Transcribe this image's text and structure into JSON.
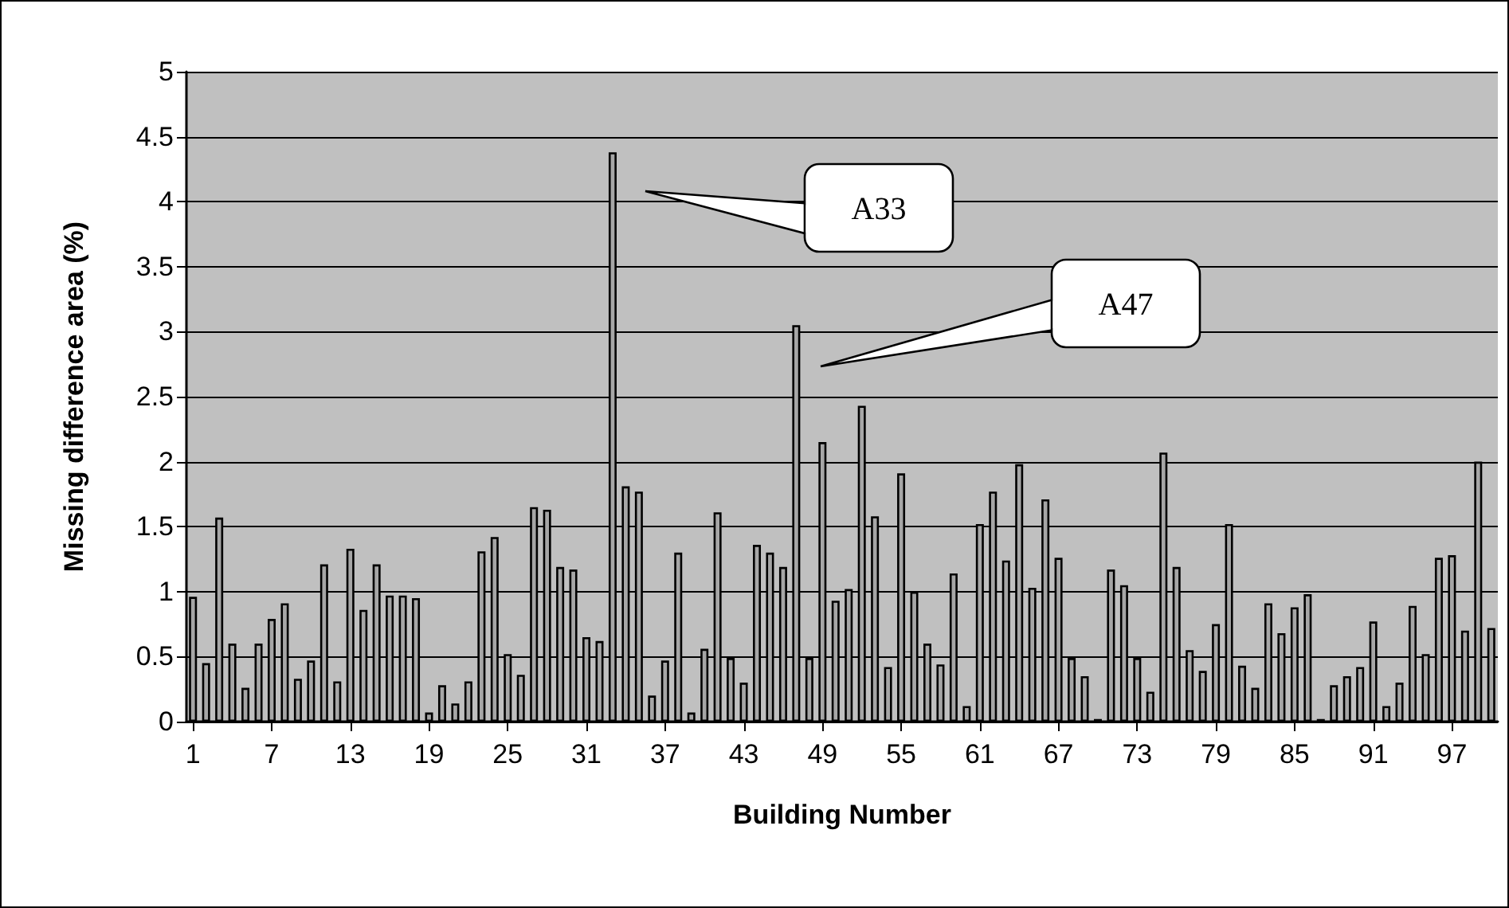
{
  "chart_data": {
    "type": "bar",
    "xlabel": "Building Number",
    "ylabel": "Missing difference area (%)",
    "x": [
      1,
      2,
      3,
      4,
      5,
      6,
      7,
      8,
      9,
      10,
      11,
      12,
      13,
      14,
      15,
      16,
      17,
      18,
      19,
      20,
      21,
      22,
      23,
      24,
      25,
      26,
      27,
      28,
      29,
      30,
      31,
      32,
      33,
      34,
      35,
      36,
      37,
      38,
      39,
      40,
      41,
      42,
      43,
      44,
      45,
      46,
      47,
      48,
      49,
      50,
      51,
      52,
      53,
      54,
      55,
      56,
      57,
      58,
      59,
      60,
      61,
      62,
      63,
      64,
      65,
      66,
      67,
      68,
      69,
      70,
      71,
      72,
      73,
      74,
      75,
      76,
      77,
      78,
      79,
      80,
      81,
      82,
      83,
      84,
      85,
      86,
      87,
      88,
      89,
      90,
      91,
      92,
      93,
      94,
      95,
      96,
      97,
      98,
      99,
      100
    ],
    "values": [
      0.96,
      0.45,
      1.57,
      0.6,
      0.26,
      0.6,
      0.79,
      0.91,
      0.33,
      0.47,
      1.21,
      0.31,
      1.33,
      0.86,
      1.21,
      0.97,
      0.97,
      0.95,
      0.07,
      0.28,
      0.14,
      0.31,
      1.31,
      1.42,
      0.52,
      0.36,
      1.65,
      1.63,
      1.19,
      1.17,
      0.65,
      0.62,
      4.38,
      1.81,
      1.77,
      0.2,
      0.47,
      1.3,
      0.07,
      0.56,
      1.61,
      0.49,
      0.3,
      1.36,
      1.3,
      1.19,
      3.05,
      0.49,
      2.15,
      0.93,
      1.02,
      2.43,
      1.58,
      0.42,
      1.91,
      1.0,
      0.6,
      0.44,
      1.14,
      0.12,
      1.52,
      1.77,
      1.24,
      1.98,
      1.03,
      1.71,
      1.26,
      0.49,
      0.35,
      0.02,
      1.17,
      1.05,
      0.49,
      0.23,
      2.07,
      1.19,
      0.55,
      0.39,
      0.75,
      1.52,
      0.43,
      0.26,
      0.91,
      0.68,
      0.88,
      0.98,
      0.02,
      0.28,
      0.35,
      0.42,
      0.77,
      0.12,
      0.3,
      0.89,
      0.52,
      1.26,
      1.28,
      0.7,
      2.0,
      0.72
    ],
    "color": "#a6a6a6",
    "xlim": [
      0.5,
      100.5
    ],
    "xticks": [
      1,
      7,
      13,
      19,
      25,
      31,
      37,
      43,
      49,
      55,
      61,
      67,
      73,
      79,
      85,
      91,
      97
    ],
    "ylim": [
      0,
      5
    ],
    "yticks": [
      0,
      0.5,
      1,
      1.5,
      2,
      2.5,
      3,
      3.5,
      4,
      4.5,
      5
    ],
    "grid": "y",
    "annotations": [
      "A33",
      "A47"
    ]
  }
}
